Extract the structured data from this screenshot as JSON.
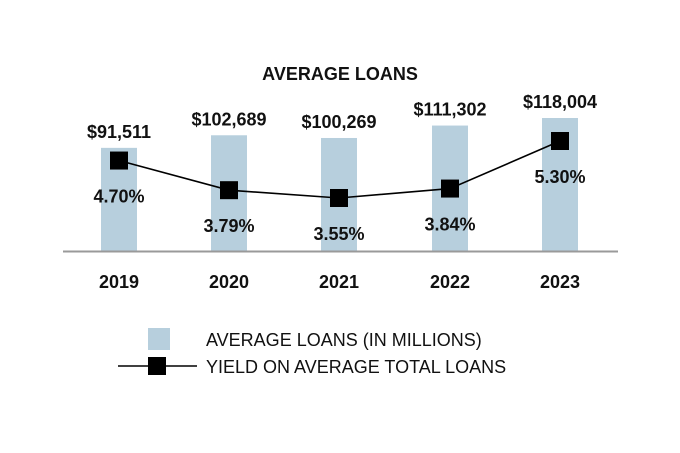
{
  "chart_data": {
    "type": "bar",
    "title": "AVERAGE LOANS",
    "categories": [
      "2019",
      "2020",
      "2021",
      "2022",
      "2023"
    ],
    "series": [
      {
        "name": "AVERAGE LOANS (IN MILLIONS)",
        "kind": "bar",
        "values": [
          91511,
          102689,
          100269,
          111302,
          118004
        ],
        "labels": [
          "$91,511",
          "$102,689",
          "$100,269",
          "$111,302",
          "$118,004"
        ],
        "color": "#b7cfdd"
      },
      {
        "name": "YIELD ON AVERAGE TOTAL LOANS",
        "kind": "line",
        "values": [
          4.7,
          3.79,
          3.55,
          3.84,
          5.3
        ],
        "labels": [
          "4.70%",
          "3.79%",
          "3.55%",
          "3.84%",
          "5.30%"
        ],
        "color": "#000000"
      }
    ],
    "ylim_bars": [
      0,
      130000
    ],
    "ylim_line": [
      0,
      7
    ],
    "legend_position": "bottom",
    "grid": false
  }
}
